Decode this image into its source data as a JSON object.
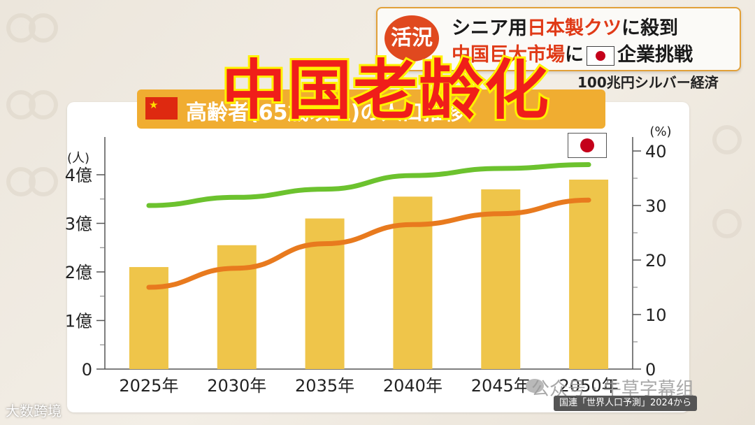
{
  "banner": {
    "badge": "活況",
    "line1_pre": "シニア用",
    "line1_red": "日本製クツ",
    "line1_post": "に殺到",
    "line2_red": "中国巨大市場",
    "line2_post": "企業挑戦",
    "line2_mid": "に",
    "subtitle": "100兆円シルバー経済"
  },
  "overlay_title": "中国老龄化",
  "chart_header": "高齢者(65歳以上)の人口推移",
  "source": "国連「世界人口予測」2024から",
  "watermark": "公众号 · 牛草字幕组",
  "corner_logo": "大数跨境",
  "chart_data": {
    "type": "bar",
    "categories": [
      "2025年",
      "2030年",
      "2035年",
      "2040年",
      "2045年",
      "2050年"
    ],
    "left_axis": {
      "label": "(人)",
      "ticks": [
        "0",
        "1億",
        "2億",
        "3億",
        "4億"
      ],
      "ylim": [
        0,
        4.4
      ]
    },
    "right_axis": {
      "label": "(%)",
      "ticks": [
        "0",
        "10",
        "20",
        "30",
        "40"
      ],
      "ylim": [
        0,
        44
      ]
    },
    "series": [
      {
        "type": "bar",
        "values": [
          2.1,
          2.55,
          3.1,
          3.55,
          3.7,
          3.9
        ],
        "color": "#efc54a"
      },
      {
        "type": "line",
        "axis": "right",
        "values": [
          15,
          18.5,
          23,
          26.5,
          28.5,
          31
        ],
        "color": "#e87a1e"
      },
      {
        "type": "line",
        "axis": "right",
        "values": [
          30,
          31.5,
          33,
          35.5,
          36.8,
          37.5
        ],
        "color": "#6cc22e"
      }
    ]
  },
  "colors": {
    "accent": "#f0ad31",
    "red": "#e03a17"
  }
}
